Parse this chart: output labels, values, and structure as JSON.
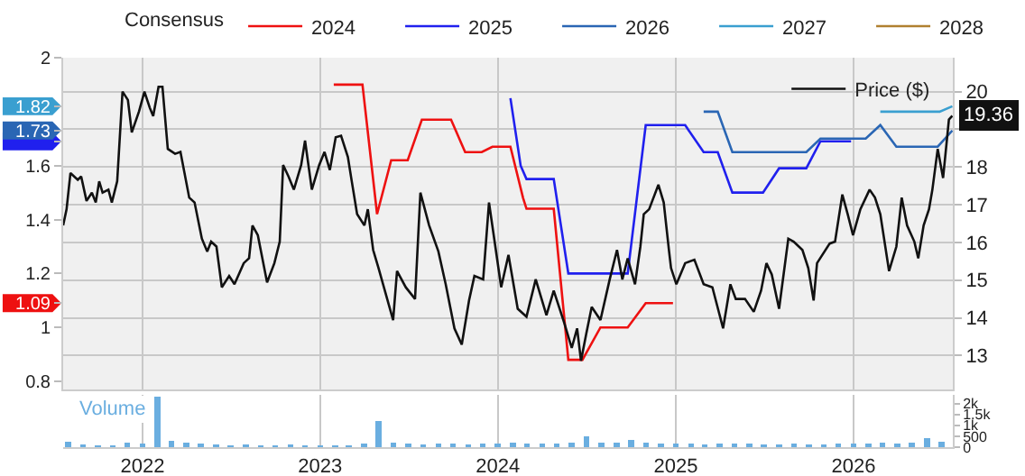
{
  "chart_data": [
    {
      "type": "line",
      "legend_title": "Consensus",
      "legend": "top",
      "grid": true,
      "tick_labels": "y",
      "xlim": [
        "2021-07-22",
        "2026-07-24"
      ],
      "xticks": [
        {
          "value": "2022-01-01",
          "label": null
        },
        {
          "value": "2023-01-01",
          "label": null
        },
        {
          "value": "2024-01-01",
          "label": null
        },
        {
          "value": "2025-01-01",
          "label": null
        },
        {
          "value": "2026-01-01",
          "label": null
        }
      ],
      "ylim": [
        0.77,
        2.0
      ],
      "yticks": [
        0.8,
        1,
        1.09,
        1.2,
        1.4,
        1.6,
        {
          "value": 1.69,
          "label": null
        },
        1.73,
        1.82,
        2
      ],
      "y2lim": [
        12.1,
        20.9
      ],
      "y2ticks": [
        13,
        14,
        15,
        16,
        17,
        18,
        {
          "value": 19,
          "label": null
        },
        20
      ],
      "series": [
        {
          "name": "2024",
          "color": "#ee1111",
          "x": [
            "2023-01-29",
            "2023-03-29",
            "2023-04-28",
            "2023-05-27",
            "2023-06-30",
            "2023-07-29",
            "2023-09-27",
            "2023-10-26",
            "2023-11-29",
            "2023-12-21",
            "2024-01-27",
            "2024-02-22",
            "2024-02-29",
            "2024-04-25",
            "2024-05-25",
            "2024-06-23",
            "2024-07-30",
            "2024-09-24",
            "2024-10-31",
            "2024-12-26"
          ],
          "values": [
            1.9,
            1.9,
            1.42,
            1.62,
            1.62,
            1.77,
            1.77,
            1.65,
            1.65,
            1.67,
            1.67,
            1.48,
            1.44,
            1.44,
            0.88,
            0.88,
            1.0,
            1.0,
            1.09,
            1.09
          ]
        },
        {
          "name": "2025",
          "color": "#2020ee",
          "x": [
            "2024-01-27",
            "2024-02-17",
            "2024-02-29",
            "2024-04-25",
            "2024-05-25",
            "2024-09-24",
            "2024-10-31",
            "2025-01-20",
            "2025-02-27",
            "2025-03-28",
            "2025-04-27",
            "2025-06-29",
            "2025-08-01",
            "2025-09-26",
            "2025-10-25",
            "2025-12-27"
          ],
          "values": [
            1.85,
            1.6,
            1.55,
            1.55,
            1.2,
            1.2,
            1.75,
            1.75,
            1.65,
            1.65,
            1.5,
            1.5,
            1.59,
            1.59,
            1.69,
            1.69
          ]
        },
        {
          "name": "2026",
          "color": "#2a66b4",
          "x": [
            "2025-02-27",
            "2025-03-28",
            "2025-04-27",
            "2025-09-26",
            "2025-10-25",
            "2026-01-26",
            "2026-02-25",
            "2026-03-30",
            "2026-06-23",
            "2026-07-23"
          ],
          "values": [
            1.8,
            1.8,
            1.65,
            1.65,
            1.7,
            1.7,
            1.75,
            1.67,
            1.67,
            1.73
          ]
        },
        {
          "name": "2027",
          "color": "#3a9fd0",
          "x": [
            "2026-02-25",
            "2026-06-27",
            "2026-07-23"
          ],
          "values": [
            1.8,
            1.8,
            1.82
          ]
        },
        {
          "name": "2028",
          "color": "#b08030"
        },
        {
          "name": "Price ($)",
          "color": "#111111",
          "axis": "y2",
          "x": [
            "2021-07-22",
            "2021-07-29",
            "2021-08-06",
            "2021-08-21",
            "2021-08-28",
            "2021-09-08",
            "2021-09-19",
            "2021-09-27",
            "2021-10-04",
            "2021-10-11",
            "2021-10-23",
            "2021-10-30",
            "2021-11-10",
            "2021-11-21",
            "2021-12-02",
            "2021-12-10",
            "2021-12-25",
            "2022-01-05",
            "2022-01-16",
            "2022-01-23",
            "2022-02-03",
            "2022-02-11",
            "2022-02-22",
            "2022-03-09",
            "2022-03-20",
            "2022-04-07",
            "2022-04-18",
            "2022-05-03",
            "2022-05-14",
            "2022-05-22",
            "2022-06-02",
            "2022-06-13",
            "2022-06-28",
            "2022-07-09",
            "2022-07-28",
            "2022-08-08",
            "2022-08-15",
            "2022-08-26",
            "2022-09-14",
            "2022-09-29",
            "2022-10-10",
            "2022-10-17",
            "2022-10-28",
            "2022-11-08",
            "2022-11-23",
            "2022-12-01",
            "2022-12-15",
            "2022-12-30",
            "2023-01-10",
            "2023-01-21",
            "2023-02-02",
            "2023-02-13",
            "2023-02-27",
            "2023-03-07",
            "2023-03-18",
            "2023-04-02",
            "2023-04-09",
            "2023-04-20",
            "2023-05-01",
            "2023-05-31",
            "2023-06-08",
            "2023-06-26",
            "2023-07-15",
            "2023-07-26",
            "2023-08-13",
            "2023-09-01",
            "2023-09-16",
            "2023-10-04",
            "2023-10-19",
            "2023-11-03",
            "2023-11-14",
            "2023-12-02",
            "2023-12-14",
            "2023-12-28",
            "2024-01-08",
            "2024-01-23",
            "2024-02-11",
            "2024-02-29",
            "2024-03-19",
            "2024-04-10",
            "2024-04-25",
            "2024-05-17",
            "2024-06-01",
            "2024-06-12",
            "2024-06-20",
            "2024-07-01",
            "2024-07-12",
            "2024-07-30",
            "2024-08-18",
            "2024-09-02",
            "2024-09-13",
            "2024-09-24",
            "2024-10-09",
            "2024-10-20",
            "2024-10-27",
            "2024-11-07",
            "2024-11-26",
            "2024-12-07",
            "2024-12-18",
            "2024-12-22",
            "2025-01-02",
            "2025-01-20",
            "2025-02-08",
            "2025-02-27",
            "2025-03-17",
            "2025-04-08",
            "2025-04-23",
            "2025-05-04",
            "2025-05-23",
            "2025-06-10",
            "2025-06-25",
            "2025-07-06",
            "2025-07-17",
            "2025-08-01",
            "2025-08-20",
            "2025-08-31",
            "2025-09-18",
            "2025-09-30",
            "2025-10-11",
            "2025-10-18",
            "2025-11-13",
            "2025-11-24",
            "2025-12-09",
            "2025-12-20",
            "2025-12-31",
            "2026-01-15",
            "2026-02-03",
            "2026-02-14",
            "2026-02-25",
            "2026-03-15",
            "2026-03-30",
            "2026-04-10",
            "2026-04-21",
            "2026-05-06",
            "2026-05-14",
            "2026-05-25",
            "2026-06-05",
            "2026-06-12",
            "2026-06-23",
            "2026-07-04",
            "2026-07-16",
            "2026-07-23"
          ],
          "value_labels": [
            null,
            null,
            null,
            null,
            null,
            null,
            null,
            null,
            null,
            null,
            null,
            null,
            null,
            null,
            null,
            null,
            null,
            null,
            null,
            null,
            null,
            null,
            null,
            null,
            null,
            null,
            null,
            null,
            null,
            null,
            null,
            null,
            null,
            null,
            null,
            null,
            null,
            null,
            null,
            null,
            null,
            null,
            null,
            null,
            null,
            null,
            null,
            null,
            null,
            null,
            null,
            null,
            null,
            null,
            null,
            null,
            null,
            null,
            null,
            null,
            null,
            null,
            null,
            null,
            null,
            null,
            null,
            null,
            null,
            null,
            null,
            null,
            null,
            null,
            null,
            null,
            null,
            null,
            null,
            null,
            null,
            null,
            null,
            null,
            null,
            null,
            null,
            null,
            null,
            null,
            null,
            null,
            null,
            null,
            null,
            null,
            null,
            null,
            null,
            null,
            null,
            null,
            null,
            null,
            null,
            null,
            null,
            null,
            null,
            null,
            null,
            null,
            null,
            null,
            null,
            null,
            null,
            null,
            null,
            null,
            null,
            null,
            null,
            null,
            null,
            null,
            null,
            null,
            null,
            null,
            null,
            null,
            null,
            null,
            null,
            null,
            null,
            null,
            null,
            null,
            null,
            "19.36"
          ],
          "values": [
            16.45,
            16.88,
            17.84,
            17.66,
            17.75,
            17.1,
            17.32,
            17.06,
            17.62,
            17.32,
            17.4,
            17.06,
            17.62,
            20.0,
            19.78,
            18.92,
            19.48,
            20.0,
            19.57,
            19.35,
            20.13,
            20.13,
            18.48,
            18.35,
            18.4,
            17.19,
            17.06,
            16.1,
            15.76,
            16.02,
            15.89,
            14.81,
            15.11,
            14.89,
            15.45,
            15.58,
            16.45,
            16.19,
            14.94,
            15.45,
            16.02,
            18.05,
            17.75,
            17.4,
            18.05,
            18.7,
            17.4,
            18.05,
            18.4,
            17.92,
            18.79,
            18.83,
            18.27,
            17.62,
            16.75,
            16.45,
            16.88,
            15.8,
            15.32,
            13.94,
            15.24,
            14.81,
            14.5,
            17.32,
            16.45,
            15.76,
            14.89,
            13.72,
            13.29,
            14.46,
            15.11,
            15.02,
            17.06,
            15.8,
            14.81,
            15.67,
            14.24,
            14.03,
            15.02,
            14.07,
            14.72,
            13.85,
            13.2,
            13.72,
            12.86,
            13.59,
            14.29,
            13.94,
            15.02,
            15.8,
            15.02,
            15.58,
            14.89,
            15.89,
            16.75,
            16.88,
            17.53,
            17.06,
            15.76,
            15.32,
            14.89,
            15.45,
            15.54,
            14.89,
            14.81,
            13.72,
            14.89,
            14.5,
            14.5,
            14.16,
            14.72,
            15.45,
            15.15,
            14.24,
            16.1,
            16.02,
            15.8,
            15.32,
            14.46,
            15.45,
            15.97,
            16.02,
            17.27,
            16.75,
            16.19,
            16.88,
            17.4,
            17.19,
            16.75,
            15.24,
            15.89,
            17.19,
            16.45,
            16.02,
            15.58,
            16.45,
            16.88,
            17.4,
            18.48,
            17.71,
            19.26,
            19.36
          ]
        }
      ]
    },
    {
      "type": "bar",
      "grid": "x",
      "xlim": [
        "2021-07-22",
        "2026-07-24"
      ],
      "xticks": [
        {
          "value": "2022-01-01",
          "label": "2022"
        },
        {
          "value": "2023-01-01",
          "label": "2023"
        },
        {
          "value": "2024-01-01",
          "label": "2024"
        },
        {
          "value": "2025-01-01",
          "label": "2025"
        },
        {
          "value": "2026-01-01",
          "label": "2026"
        }
      ],
      "ylim": [
        0,
        2400
      ],
      "yticks": [
        0,
        500,
        {
          "value": 1000,
          "label": "1k"
        },
        {
          "value": 1500,
          "label": "1.5k"
        },
        {
          "value": 2000,
          "label": "2k"
        }
      ],
      "series": [
        {
          "name": "Volume",
          "color": "#6aaee0",
          "x": [
            "2021-08",
            "2021-09",
            "2021-10",
            "2021-11",
            "2021-12",
            "2022-01",
            "2022-02",
            "2022-03",
            "2022-04",
            "2022-05",
            "2022-06",
            "2022-07",
            "2022-08",
            "2022-09",
            "2022-10",
            "2022-11",
            "2022-12",
            "2023-01",
            "2023-02",
            "2023-03",
            "2023-04",
            "2023-05",
            "2023-06",
            "2023-07",
            "2023-08",
            "2023-09",
            "2023-10",
            "2023-11",
            "2023-12",
            "2024-01",
            "2024-02",
            "2024-03",
            "2024-04",
            "2024-05",
            "2024-06",
            "2024-07",
            "2024-08",
            "2024-09",
            "2024-10",
            "2024-11",
            "2024-12",
            "2025-01",
            "2025-02",
            "2025-03",
            "2025-04",
            "2025-05",
            "2025-06",
            "2025-07",
            "2025-08",
            "2025-09",
            "2025-10",
            "2025-11",
            "2025-12",
            "2026-01",
            "2026-02",
            "2026-03",
            "2026-04",
            "2026-05",
            "2026-06",
            "2026-07"
          ],
          "values": [
            250,
            120,
            100,
            100,
            200,
            150,
            2300,
            300,
            200,
            150,
            120,
            100,
            120,
            100,
            100,
            120,
            100,
            100,
            80,
            100,
            150,
            1200,
            200,
            150,
            120,
            150,
            150,
            120,
            150,
            150,
            200,
            150,
            150,
            150,
            200,
            500,
            200,
            200,
            350,
            200,
            150,
            150,
            150,
            120,
            150,
            150,
            150,
            120,
            120,
            150,
            120,
            120,
            150,
            150,
            150,
            200,
            150,
            200,
            400,
            250
          ]
        }
      ]
    }
  ]
}
